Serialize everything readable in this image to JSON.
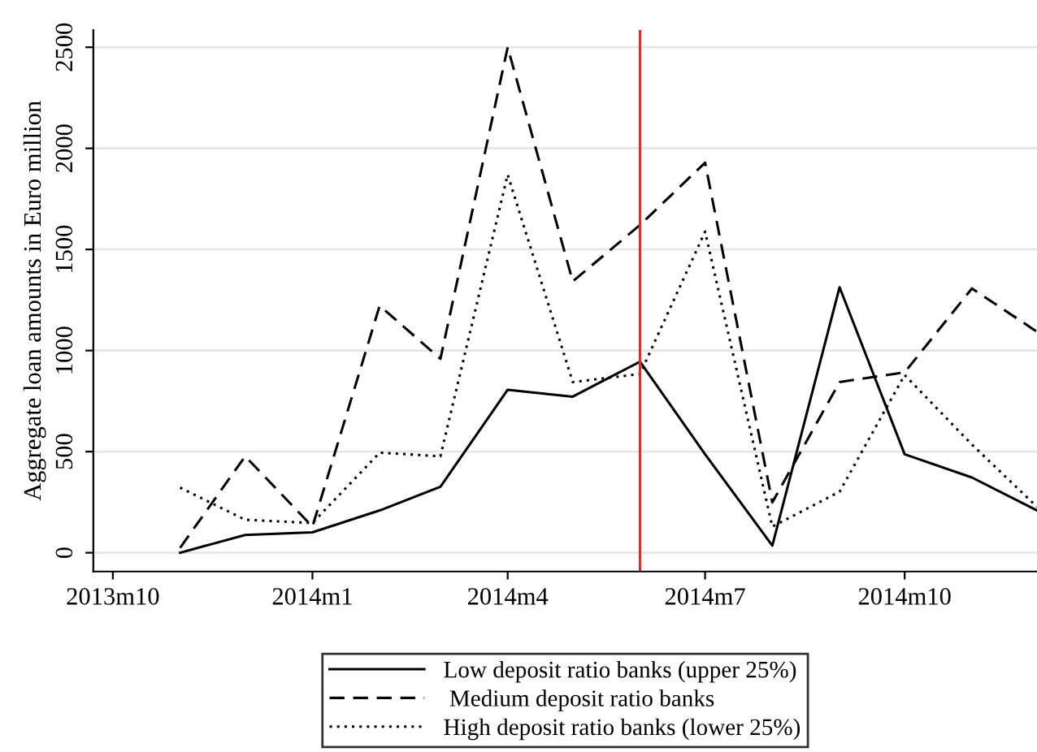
{
  "chart_data": {
    "type": "line",
    "ylabel": "Aggregate loan amounts in Euro million",
    "x": [
      "2013-11",
      "2013-12",
      "2014-01",
      "2014-02",
      "2014-03",
      "2014-04",
      "2014-05",
      "2014-06",
      "2014-07",
      "2014-08",
      "2014-09",
      "2014-10",
      "2014-11",
      "2014-12"
    ],
    "series": [
      {
        "name": "Low deposit ratio banks (upper 25%)",
        "color": "#000000",
        "line_style": "solid",
        "values": [
          0,
          88,
          101,
          209,
          326,
          806,
          772,
          945,
          487,
          35,
          1313,
          487,
          372,
          209
        ]
      },
      {
        "name": " Medium deposit ratio banks",
        "color": "#000000",
        "line_style": "dashed",
        "values": [
          24,
          477,
          129,
          1222,
          959,
          2500,
          1342,
          1621,
          1929,
          249,
          844,
          892,
          1307,
          1093
        ]
      },
      {
        "name": "High deposit ratio banks (lower 25%)",
        "color": "#000000",
        "line_style": "dotted",
        "values": [
          322,
          163,
          147,
          495,
          477,
          1870,
          844,
          884,
          1588,
          129,
          302,
          879,
          535,
          227
        ]
      }
    ],
    "xlim": [
      "2013-09-22",
      "2014-12"
    ],
    "xticks": [
      {
        "value": "2013-10",
        "label": "2013m10"
      },
      {
        "value": "2014-01",
        "label": "2014m1"
      },
      {
        "value": "2014-04",
        "label": "2014m4"
      },
      {
        "value": "2014-07",
        "label": "2014m7"
      },
      {
        "value": "2014-10",
        "label": "2014m10"
      }
    ],
    "ylim": [
      -93,
      2585
    ],
    "yticks": [
      0,
      500,
      1000,
      1500,
      2000,
      2500
    ],
    "ref_lines": [
      {
        "axis": "x",
        "value": "2014-06",
        "color": "#e8262d"
      }
    ],
    "grid": "y",
    "legend": "bottom",
    "marker": "none"
  }
}
